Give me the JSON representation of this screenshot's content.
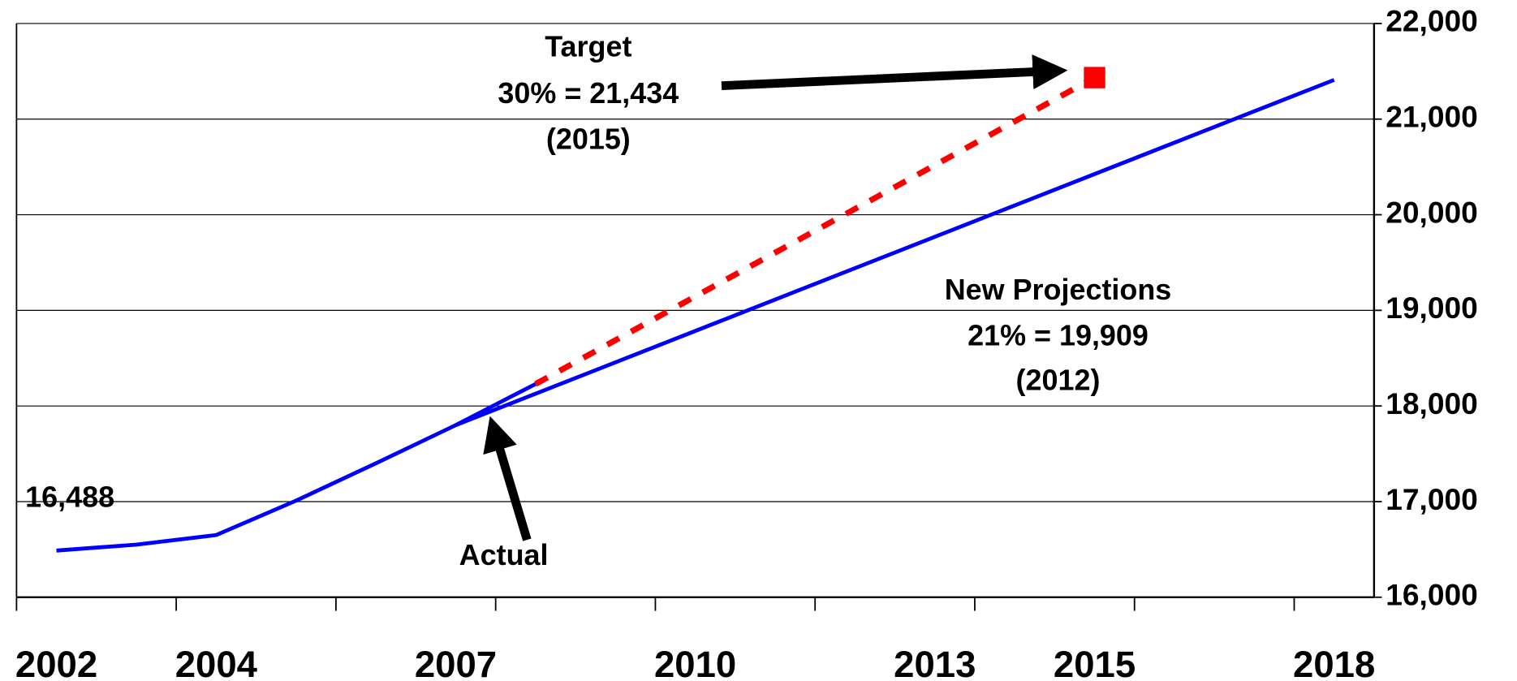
{
  "chart_data": {
    "type": "line",
    "xlim": [
      2001.5,
      2018.5
    ],
    "xticks": [
      2002,
      2004,
      2007,
      2010,
      2013,
      2015,
      2018
    ],
    "minor_xticks": [
      2001.5,
      2003.5,
      2005.5,
      2007.5,
      2009.5,
      2011.5,
      2013.5,
      2015.5,
      2017.5
    ],
    "ylim": [
      16000,
      22000
    ],
    "yticks": [
      {
        "value": 16000,
        "label": "16,000"
      },
      {
        "value": 17000,
        "label": "17,000"
      },
      {
        "value": 18000,
        "label": "18,000"
      },
      {
        "value": 19000,
        "label": "19,000"
      },
      {
        "value": 20000,
        "label": "20,000"
      },
      {
        "value": 21000,
        "label": "21,000"
      },
      {
        "value": 22000,
        "label": "22,000"
      }
    ],
    "y_axis_side": "right",
    "grid": true,
    "series": [
      {
        "color": "#0000ff",
        "style": "solid",
        "x": [
          2002,
          2003,
          2004,
          2005,
          2006,
          2007,
          2008
        ],
        "values": [
          16488,
          16550,
          16650,
          17010,
          17400,
          17800,
          18230
        ]
      },
      {
        "color": "#0000ff",
        "style": "solid",
        "x": [
          2007,
          2018
        ],
        "values": [
          17800,
          21410
        ]
      },
      {
        "color": "#ff0000",
        "style": "dashed",
        "x": [
          2008,
          2015
        ],
        "values": [
          18230,
          21434
        ]
      },
      {
        "color": "#ff0000",
        "style": "none",
        "marker": "square",
        "x": [
          2015
        ],
        "values": [
          21434
        ]
      }
    ],
    "annotations": [
      "Target",
      "30% = 21,434",
      "(2015)",
      "New Projections",
      "21% = 19,909",
      "(2012)",
      "16,488",
      "Actual"
    ]
  }
}
